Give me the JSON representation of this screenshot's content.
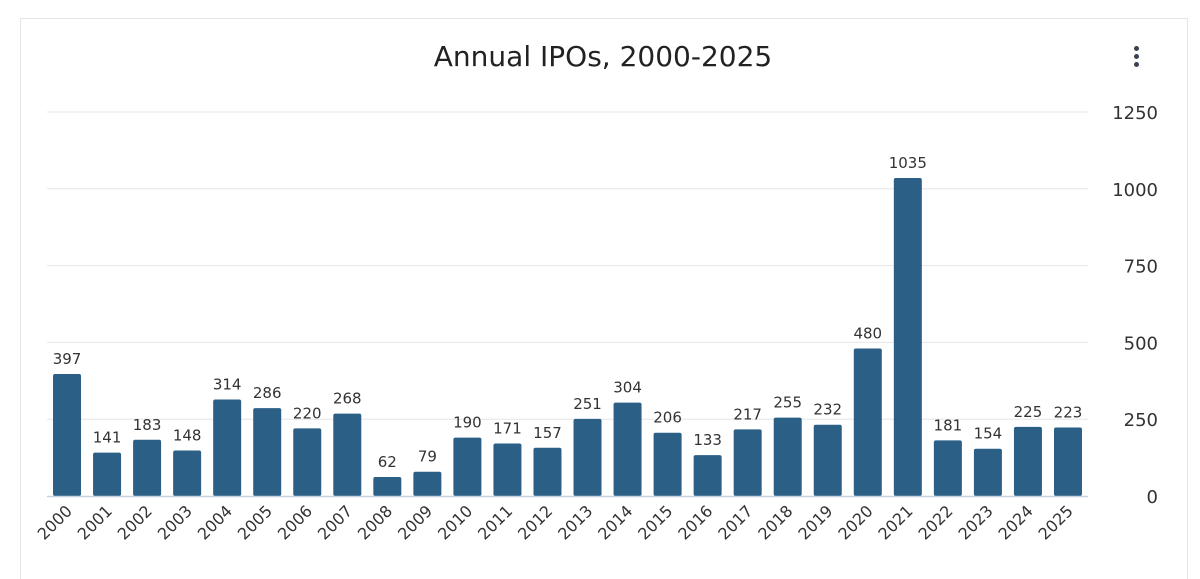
{
  "chart_data": {
    "type": "bar",
    "title": "Annual IPOs, 2000-2025",
    "categories": [
      "2000",
      "2001",
      "2002",
      "2003",
      "2004",
      "2005",
      "2006",
      "2007",
      "2008",
      "2009",
      "2010",
      "2011",
      "2012",
      "2013",
      "2014",
      "2015",
      "2016",
      "2017",
      "2018",
      "2019",
      "2020",
      "2021",
      "2022",
      "2023",
      "2024",
      "2025"
    ],
    "values": [
      397,
      141,
      183,
      148,
      314,
      286,
      220,
      268,
      62,
      79,
      190,
      171,
      157,
      251,
      304,
      206,
      133,
      217,
      255,
      232,
      480,
      1035,
      181,
      154,
      225,
      223
    ],
    "ylim": [
      0,
      1250
    ],
    "yticks": [
      0,
      250,
      500,
      750,
      1000,
      1250
    ],
    "y_axis_side": "right",
    "grid": true,
    "data_labels": true,
    "bar_color": "#2b5f86",
    "xlabel": "",
    "ylabel": ""
  },
  "menu_icon": "more-vertical-icon"
}
